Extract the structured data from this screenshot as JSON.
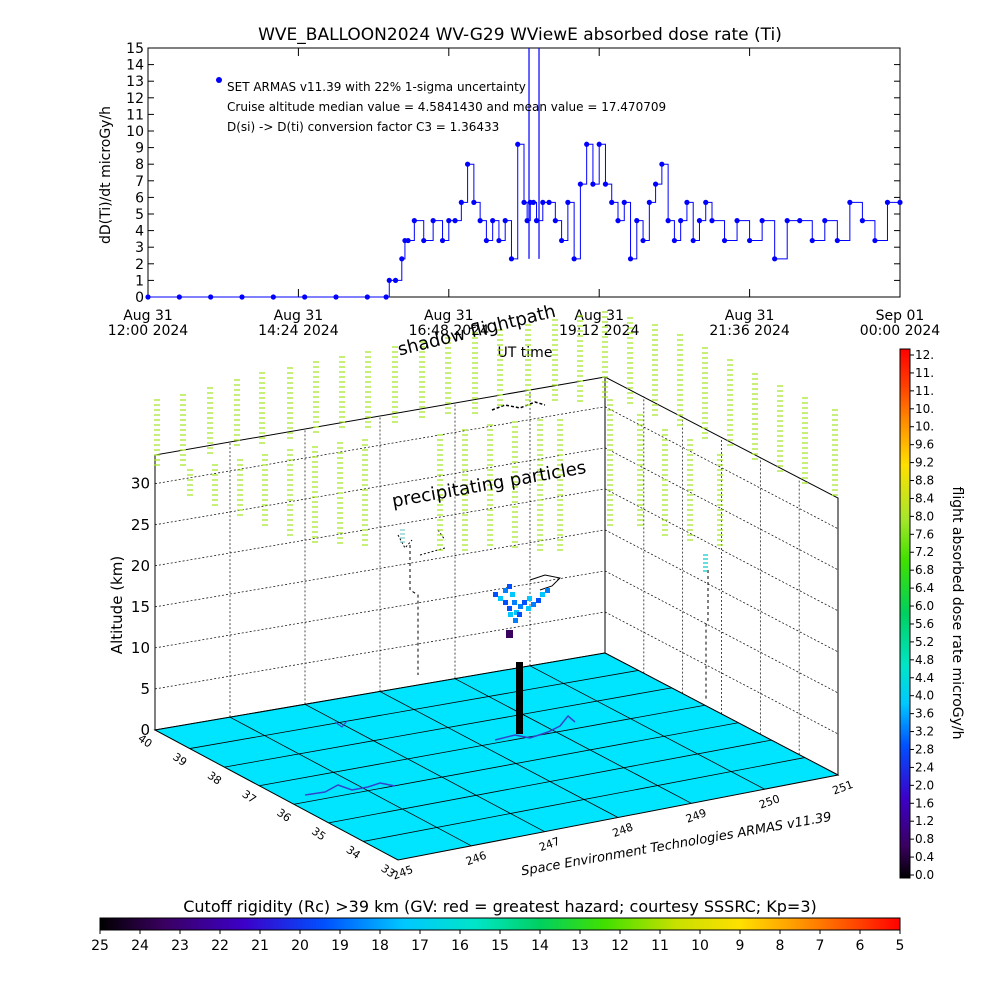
{
  "chart_data": [
    {
      "type": "line",
      "title": "WVE_BALLOON2024 WV-G29 WViewE absorbed dose rate (Ti)",
      "ylabel": "dD(Ti)/dt microGy/h",
      "xlabel": "UT time",
      "ylim": [
        0,
        15
      ],
      "yticks": [
        "0",
        "1",
        "2",
        "3",
        "4",
        "5",
        "6",
        "7",
        "8",
        "9",
        "10",
        "11",
        "12",
        "13",
        "14",
        "15"
      ],
      "xlim": [
        "2024-08-31T12:00",
        "2024-09-01T00:00"
      ],
      "xticks": [
        {
          "top": "Aug 31",
          "bottom": "12:00 2024",
          "t": 0
        },
        {
          "top": "Aug 31",
          "bottom": "14:24 2024",
          "t": 2.4
        },
        {
          "top": "Aug 31",
          "bottom": "16:48 2024",
          "t": 4.8
        },
        {
          "top": "Aug 31",
          "bottom": "19:12 2024",
          "t": 7.2
        },
        {
          "top": "Aug 31",
          "bottom": "21:36 2024",
          "t": 9.6
        },
        {
          "top": "Sep 01",
          "bottom": "00:00 2024",
          "t": 12
        }
      ],
      "annotations": [
        "SET ARMAS v11.39 with 22% 1-sigma uncertainty",
        "Cruise altitude median value = 4.5841430 and mean value = 17.470709",
        "D(si) -> D(ti) conversion factor C3 = 1.36433"
      ],
      "series": [
        {
          "x_hours": [
            0,
            0.5,
            1,
            1.5,
            2,
            2.5,
            3,
            3.5,
            3.8,
            3.85,
            3.95,
            4.05,
            4.1,
            4.15,
            4.25,
            4.4,
            4.55,
            4.7,
            4.8,
            4.9,
            5,
            5.1,
            5.2,
            5.3,
            5.4,
            5.5,
            5.6,
            5.7,
            5.8,
            5.9,
            6,
            6.05,
            6.1,
            6.15,
            6.2,
            6.3,
            6.4,
            6.5,
            6.6,
            6.7,
            6.8,
            6.9,
            7,
            7.1,
            7.2,
            7.3,
            7.4,
            7.5,
            7.6,
            7.7,
            7.8,
            7.9,
            8,
            8.1,
            8.2,
            8.3,
            8.4,
            8.5,
            8.6,
            8.7,
            8.8,
            8.9,
            9,
            9.2,
            9.4,
            9.6,
            9.8,
            10,
            10.2,
            10.4,
            10.6,
            10.8,
            11,
            11.2,
            11.4,
            11.6,
            11.8,
            12
          ],
          "y": [
            0,
            0,
            0,
            0,
            0,
            0,
            0,
            0,
            0,
            1,
            1,
            2.3,
            3.4,
            3.4,
            4.6,
            3.4,
            4.6,
            3.4,
            4.6,
            4.6,
            5.7,
            8,
            5.7,
            4.6,
            3.4,
            4.6,
            3.4,
            4.6,
            2.3,
            9.2,
            5.7,
            4.6,
            5.7,
            5.7,
            4.6,
            5.7,
            5.7,
            4.6,
            3.4,
            5.7,
            2.3,
            6.8,
            9.2,
            6.8,
            9.2,
            6.8,
            5.7,
            4.6,
            5.7,
            2.3,
            4.6,
            3.4,
            5.7,
            6.8,
            8,
            4.6,
            3.4,
            4.6,
            5.7,
            3.4,
            4.6,
            5.7,
            4.6,
            3.4,
            4.6,
            3.4,
            4.6,
            2.3,
            4.6,
            4.6,
            3.4,
            4.6,
            3.4,
            5.7,
            4.6,
            3.4,
            5.7,
            5.7
          ],
          "spike_hours": 6.08,
          "spike_value": 15
        }
      ]
    },
    {
      "type": "scatter",
      "title": "shadow flightpath",
      "plot_label": "precipitating particles",
      "credit": "Space Environment Technologies ARMAS v11.39",
      "zlabel": "Altitude (km)",
      "zticks": [
        "0",
        "5",
        "10",
        "15",
        "20",
        "25",
        "30"
      ],
      "lat_ticks": [
        "40",
        "39",
        "38",
        "37",
        "36",
        "35",
        "34",
        "33"
      ],
      "lon_ticks": [
        "245",
        "246",
        "247",
        "248",
        "249",
        "250",
        "251"
      ],
      "shadow_text": "shadow",
      "colorbar": {
        "label": "flight absorbed dose rate microGy/h",
        "ticks": [
          "12.",
          "11.",
          "11.",
          "10.",
          "10.",
          "9.6",
          "9.2",
          "8.8",
          "8.4",
          "8.0",
          "7.6",
          "7.2",
          "6.8",
          "6.4",
          "6.0",
          "5.6",
          "5.2",
          "4.8",
          "4.4",
          "4.0",
          "3.6",
          "3.2",
          "2.8",
          "2.4",
          "2.0",
          "1.6",
          "1.2",
          "0.8",
          "0.4",
          "0.0"
        ]
      },
      "flight_profile": [
        {
          "alt_km": 0,
          "dose": 0
        },
        {
          "alt_km": 2,
          "dose": 0
        },
        {
          "alt_km": 4,
          "dose": 0
        },
        {
          "alt_km": 6,
          "dose": 0
        },
        {
          "alt_km": 8,
          "dose": 0
        },
        {
          "alt_km": 11,
          "dose": 0.8
        },
        {
          "alt_km": 16,
          "dose": 3.4
        },
        {
          "alt_km": 17,
          "dose": 4.6
        },
        {
          "alt_km": 18,
          "dose": 3.0
        }
      ]
    }
  ],
  "rc_bar": {
    "title": "Cutoff rigidity (Rc) >39 km (GV: red = greatest hazard; courtesy SSSRC; Kp=3)",
    "ticks": [
      "25",
      "24",
      "23",
      "22",
      "21",
      "20",
      "19",
      "18",
      "17",
      "16",
      "15",
      "14",
      "13",
      "12",
      "11",
      "10",
      "9",
      "8",
      "7",
      "6",
      "5"
    ]
  },
  "colors": {
    "series": "#0000ff",
    "ground": "#00e5ff",
    "particles": "#a8e62b",
    "ground_track": "#3344cc"
  }
}
